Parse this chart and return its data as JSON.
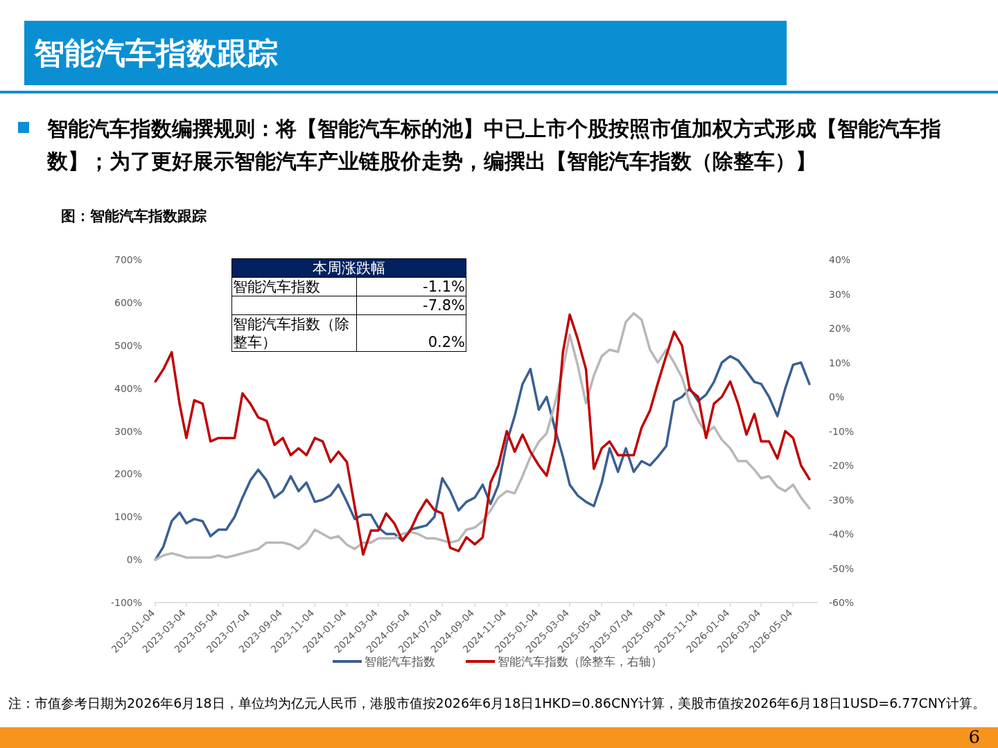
{
  "chart_data": [
    {
      "type": "line",
      "title": "智能汽车指数跟踪",
      "subtitle": "智能汽车指数编撰规则：将【智能汽车标的池】中已上市个股按照市值加权方式形成【智能汽车指数】；为了更好展示智能汽车产业链股价走势，编撰出【智能汽车指数（除整车）】",
      "annotations": [
        "图：智能汽车指数跟踪",
        "注：市值参考日期为2026年6月18日，单位均为亿元人民币，港股市值按2026年6月18日1HKD=0.86CNY计算，美股市值按2026年6月18日1USD=6.77CNY计算。",
        "6"
      ],
      "x": [
        "2023-01-04",
        "2023-01-19",
        "2023-02-04",
        "2023-02-19",
        "2023-03-04",
        "2023-03-19",
        "2023-04-04",
        "2023-04-19",
        "2023-05-04",
        "2023-05-19",
        "2023-06-04",
        "2023-06-19",
        "2023-07-04",
        "2023-07-19",
        "2023-08-04",
        "2023-08-19",
        "2023-09-04",
        "2023-09-19",
        "2023-10-04",
        "2023-10-19",
        "2023-11-04",
        "2023-11-19",
        "2023-12-04",
        "2023-12-19",
        "2024-01-04",
        "2024-01-19",
        "2024-02-04",
        "2024-02-19",
        "2024-03-04",
        "2024-03-19",
        "2024-04-04",
        "2024-04-19",
        "2024-05-04",
        "2024-05-19",
        "2024-06-04",
        "2024-06-19",
        "2024-07-04",
        "2024-07-19",
        "2024-08-04",
        "2024-08-19",
        "2024-09-04",
        "2024-09-19",
        "2024-10-04",
        "2024-10-19",
        "2024-11-04",
        "2024-11-19",
        "2024-12-04",
        "2024-12-19",
        "2025-01-04",
        "2025-01-19",
        "2025-02-04",
        "2025-02-19",
        "2025-03-04",
        "2025-03-19",
        "2025-04-04",
        "2025-04-19",
        "2025-05-04",
        "2025-05-19",
        "2025-06-04",
        "2025-06-19",
        "2025-07-04",
        "2025-07-19",
        "2025-08-04",
        "2025-08-19",
        "2025-09-04",
        "2025-09-19",
        "2025-10-04",
        "2025-10-19",
        "2025-11-04",
        "2025-11-19",
        "2025-12-04",
        "2025-12-19",
        "2026-01-04",
        "2026-01-19",
        "2026-02-04",
        "2026-02-19",
        "2026-03-04",
        "2026-03-19",
        "2026-04-04",
        "2026-04-19",
        "2026-05-04",
        "2026-05-19",
        "2026-06-04"
      ],
      "series": [
        {
          "name": "智能汽车指数",
          "color": "#3a5f93",
          "values": [
            0,
            30,
            90,
            110,
            85,
            95,
            90,
            55,
            70,
            70,
            100,
            145,
            185,
            210,
            185,
            145,
            160,
            195,
            160,
            180,
            135,
            140,
            150,
            175,
            135,
            95,
            105,
            105,
            75,
            60,
            60,
            45,
            70,
            75,
            80,
            100,
            190,
            160,
            115,
            135,
            145,
            175,
            130,
            175,
            275,
            335,
            410,
            445,
            350,
            380,
            305,
            240,
            175,
            150,
            135,
            125,
            180,
            260,
            205,
            260,
            205,
            230,
            220,
            240,
            265,
            370,
            380,
            400,
            370,
            385,
            415,
            460,
            475,
            465,
            440,
            415,
            410,
            380,
            335,
            400,
            455,
            460,
            410
          ]
        },
        {
          "color": "#b8b8b8",
          "values": [
            0,
            10,
            15,
            10,
            5,
            5,
            5,
            5,
            10,
            5,
            10,
            15,
            20,
            25,
            40,
            40,
            40,
            35,
            25,
            40,
            70,
            60,
            50,
            55,
            35,
            25,
            40,
            40,
            50,
            50,
            50,
            60,
            65,
            60,
            50,
            50,
            45,
            40,
            45,
            70,
            75,
            90,
            115,
            145,
            160,
            155,
            195,
            240,
            275,
            295,
            365,
            445,
            525,
            455,
            365,
            430,
            475,
            490,
            485,
            555,
            575,
            560,
            490,
            460,
            490,
            460,
            425,
            365,
            325,
            295,
            310,
            280,
            260,
            230,
            230,
            210,
            190,
            195,
            170,
            160,
            175,
            145,
            120
          ]
        },
        {
          "name": "智能汽车指数（除整车，右轴）",
          "color": "#c00000",
          "axis": "y2",
          "values": [
            4.5,
            8,
            13,
            -2,
            -12,
            -1,
            -2,
            -13,
            -12,
            -12,
            -12,
            1,
            -2,
            -6,
            -7,
            -14,
            -12,
            -17,
            -15,
            -17,
            -12,
            -13,
            -19,
            -16,
            -19,
            -32,
            -46,
            -39,
            -39,
            -34,
            -37,
            -42,
            -39,
            -34,
            -30,
            -33,
            -34,
            -44,
            -45,
            -41,
            -43,
            -41,
            -25,
            -20,
            -10,
            -16,
            -11,
            -16,
            -20,
            -23,
            -13,
            13,
            24,
            17,
            8,
            -21,
            -15,
            -13,
            -17,
            -17,
            -17,
            -9,
            -4,
            4,
            12,
            19,
            15,
            2,
            0,
            -12,
            -2,
            0,
            4.5,
            -2,
            -11,
            -5,
            -13,
            -13,
            -18,
            -10,
            -12,
            -20,
            -24
          ]
        }
      ],
      "xlim": [
        "2023-01-01",
        "2026-06-20"
      ],
      "xticks": [
        "2023-01-04",
        "2023-03-04",
        "2023-05-04",
        "2023-07-04",
        "2023-09-04",
        "2023-11-04",
        "2024-01-04",
        "2024-03-04",
        "2024-05-04",
        "2024-07-04",
        "2024-09-04",
        "2024-11-04",
        "2025-01-04",
        "2025-03-04",
        "2025-05-04",
        "2025-07-04",
        "2025-09-04",
        "2025-11-04",
        "2026-01-04",
        "2026-03-04",
        "2026-05-04"
      ],
      "ylim": [
        -100,
        700
      ],
      "yticks": [
        {
          "value": -100,
          "label": "-100%"
        },
        {
          "value": 0,
          "label": "0%"
        },
        {
          "value": 100,
          "label": "100%"
        },
        {
          "value": 200,
          "label": "200%"
        },
        {
          "value": 300,
          "label": "300%"
        },
        {
          "value": 400,
          "label": "400%"
        },
        {
          "value": 500,
          "label": "500%"
        },
        {
          "value": 600,
          "label": "600%"
        },
        {
          "value": 700,
          "label": "700%"
        }
      ],
      "y2lim": [
        -60,
        40
      ],
      "y2ticks": [
        {
          "value": -60,
          "label": "-60%"
        },
        {
          "value": -50,
          "label": "-50%"
        },
        {
          "value": -40,
          "label": "-40%"
        },
        {
          "value": -30,
          "label": "-30%"
        },
        {
          "value": -20,
          "label": "-20%"
        },
        {
          "value": -10,
          "label": "-10%"
        },
        {
          "value": 0,
          "label": "0%"
        },
        {
          "value": 10,
          "label": "10%"
        },
        {
          "value": 20,
          "label": "20%"
        },
        {
          "value": 30,
          "label": "30%"
        },
        {
          "value": 40,
          "label": "40%"
        }
      ],
      "legend": "bottom"
    },
    {
      "type": "other",
      "title": "本周涨跌幅",
      "categories": [
        "智能汽车指数",
        null,
        "智能汽车指数（除整车）"
      ],
      "value_labels": [
        "-1.1%",
        "-7.8%",
        "0.2%"
      ]
    }
  ]
}
